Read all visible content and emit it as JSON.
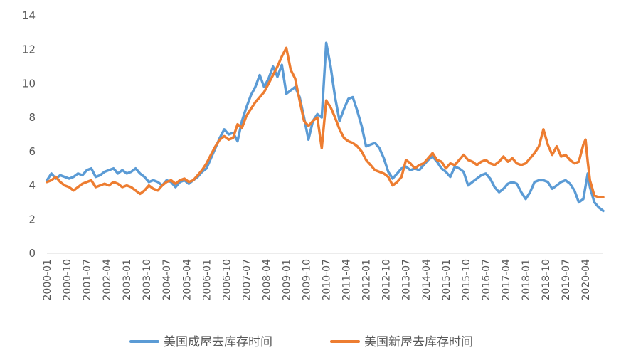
{
  "chart_data": {
    "type": "line",
    "title": "",
    "xlabel": "",
    "ylabel": "",
    "ylim": [
      0,
      14
    ],
    "yticks": [
      0,
      2,
      4,
      6,
      8,
      10,
      12,
      14
    ],
    "x_start": "2000-01",
    "x_end": "2020-12",
    "xtick_labels": [
      "2000-01",
      "2000-10",
      "2001-07",
      "2002-04",
      "2003-01",
      "2003-10",
      "2004-07",
      "2005-04",
      "2006-01",
      "2006-10",
      "2007-07",
      "2008-04",
      "2009-01",
      "2009-10",
      "2010-07",
      "2011-04",
      "2012-01",
      "2012-10",
      "2013-07",
      "2014-04",
      "2015-01",
      "2015-10",
      "2016-07",
      "2017-04",
      "2018-01",
      "2018-10",
      "2019-07",
      "2020-04"
    ],
    "grid": false,
    "legend_position": "bottom",
    "series": [
      {
        "name": "美国成屋去库存时间",
        "color": "#5B9BD5",
        "points": [
          [
            "2000-01",
            4.3
          ],
          [
            "2000-03",
            4.7
          ],
          [
            "2000-05",
            4.4
          ],
          [
            "2000-07",
            4.6
          ],
          [
            "2000-09",
            4.5
          ],
          [
            "2000-11",
            4.4
          ],
          [
            "2001-01",
            4.5
          ],
          [
            "2001-03",
            4.7
          ],
          [
            "2001-05",
            4.6
          ],
          [
            "2001-07",
            4.9
          ],
          [
            "2001-09",
            5.0
          ],
          [
            "2001-11",
            4.5
          ],
          [
            "2002-01",
            4.6
          ],
          [
            "2002-03",
            4.8
          ],
          [
            "2002-05",
            4.9
          ],
          [
            "2002-07",
            5.0
          ],
          [
            "2002-09",
            4.7
          ],
          [
            "2002-11",
            4.9
          ],
          [
            "2003-01",
            4.7
          ],
          [
            "2003-03",
            4.8
          ],
          [
            "2003-05",
            5.0
          ],
          [
            "2003-07",
            4.7
          ],
          [
            "2003-09",
            4.5
          ],
          [
            "2003-11",
            4.2
          ],
          [
            "2004-01",
            4.3
          ],
          [
            "2004-03",
            4.2
          ],
          [
            "2004-05",
            4.0
          ],
          [
            "2004-07",
            4.3
          ],
          [
            "2004-09",
            4.2
          ],
          [
            "2004-11",
            3.9
          ],
          [
            "2005-01",
            4.2
          ],
          [
            "2005-03",
            4.3
          ],
          [
            "2005-05",
            4.1
          ],
          [
            "2005-07",
            4.3
          ],
          [
            "2005-09",
            4.5
          ],
          [
            "2005-11",
            4.8
          ],
          [
            "2006-01",
            5.0
          ],
          [
            "2006-03",
            5.6
          ],
          [
            "2006-05",
            6.2
          ],
          [
            "2006-07",
            6.8
          ],
          [
            "2006-09",
            7.3
          ],
          [
            "2006-11",
            7.0
          ],
          [
            "2007-01",
            7.1
          ],
          [
            "2007-03",
            6.6
          ],
          [
            "2007-05",
            7.8
          ],
          [
            "2007-07",
            8.6
          ],
          [
            "2007-09",
            9.3
          ],
          [
            "2007-11",
            9.8
          ],
          [
            "2008-01",
            10.5
          ],
          [
            "2008-03",
            9.8
          ],
          [
            "2008-05",
            10.3
          ],
          [
            "2008-07",
            11.0
          ],
          [
            "2008-09",
            10.4
          ],
          [
            "2008-11",
            11.1
          ],
          [
            "2009-01",
            9.4
          ],
          [
            "2009-03",
            9.6
          ],
          [
            "2009-05",
            9.8
          ],
          [
            "2009-07",
            9.2
          ],
          [
            "2009-09",
            8.0
          ],
          [
            "2009-11",
            6.7
          ],
          [
            "2010-01",
            7.8
          ],
          [
            "2010-03",
            8.2
          ],
          [
            "2010-05",
            8.0
          ],
          [
            "2010-07",
            12.4
          ],
          [
            "2010-09",
            11.0
          ],
          [
            "2010-11",
            9.2
          ],
          [
            "2011-01",
            7.8
          ],
          [
            "2011-03",
            8.5
          ],
          [
            "2011-05",
            9.1
          ],
          [
            "2011-07",
            9.2
          ],
          [
            "2011-09",
            8.4
          ],
          [
            "2011-11",
            7.5
          ],
          [
            "2012-01",
            6.3
          ],
          [
            "2012-03",
            6.4
          ],
          [
            "2012-05",
            6.5
          ],
          [
            "2012-07",
            6.2
          ],
          [
            "2012-09",
            5.6
          ],
          [
            "2012-11",
            4.8
          ],
          [
            "2013-01",
            4.4
          ],
          [
            "2013-03",
            4.7
          ],
          [
            "2013-05",
            5.0
          ],
          [
            "2013-07",
            5.1
          ],
          [
            "2013-09",
            4.9
          ],
          [
            "2013-11",
            5.0
          ],
          [
            "2014-01",
            4.9
          ],
          [
            "2014-03",
            5.2
          ],
          [
            "2014-05",
            5.5
          ],
          [
            "2014-07",
            5.7
          ],
          [
            "2014-09",
            5.4
          ],
          [
            "2014-11",
            5.0
          ],
          [
            "2015-01",
            4.8
          ],
          [
            "2015-03",
            4.5
          ],
          [
            "2015-05",
            5.1
          ],
          [
            "2015-07",
            5.0
          ],
          [
            "2015-09",
            4.8
          ],
          [
            "2015-11",
            4.0
          ],
          [
            "2016-01",
            4.2
          ],
          [
            "2016-03",
            4.4
          ],
          [
            "2016-05",
            4.6
          ],
          [
            "2016-07",
            4.7
          ],
          [
            "2016-09",
            4.4
          ],
          [
            "2016-11",
            3.9
          ],
          [
            "2017-01",
            3.6
          ],
          [
            "2017-03",
            3.8
          ],
          [
            "2017-05",
            4.1
          ],
          [
            "2017-07",
            4.2
          ],
          [
            "2017-09",
            4.1
          ],
          [
            "2017-11",
            3.6
          ],
          [
            "2018-01",
            3.2
          ],
          [
            "2018-03",
            3.6
          ],
          [
            "2018-05",
            4.2
          ],
          [
            "2018-07",
            4.3
          ],
          [
            "2018-09",
            4.3
          ],
          [
            "2018-11",
            4.2
          ],
          [
            "2019-01",
            3.8
          ],
          [
            "2019-03",
            4.0
          ],
          [
            "2019-05",
            4.2
          ],
          [
            "2019-07",
            4.3
          ],
          [
            "2019-09",
            4.1
          ],
          [
            "2019-11",
            3.7
          ],
          [
            "2020-01",
            3.0
          ],
          [
            "2020-03",
            3.2
          ],
          [
            "2020-05",
            4.7
          ],
          [
            "2020-06",
            3.9
          ],
          [
            "2020-08",
            3.0
          ],
          [
            "2020-10",
            2.7
          ],
          [
            "2020-12",
            2.5
          ]
        ]
      },
      {
        "name": "美国新屋去库存时间",
        "color": "#ED7D31",
        "points": [
          [
            "2000-01",
            4.2
          ],
          [
            "2000-03",
            4.3
          ],
          [
            "2000-05",
            4.5
          ],
          [
            "2000-07",
            4.2
          ],
          [
            "2000-09",
            4.0
          ],
          [
            "2000-11",
            3.9
          ],
          [
            "2001-01",
            3.7
          ],
          [
            "2001-03",
            3.9
          ],
          [
            "2001-05",
            4.1
          ],
          [
            "2001-07",
            4.2
          ],
          [
            "2001-09",
            4.3
          ],
          [
            "2001-11",
            3.9
          ],
          [
            "2002-01",
            4.0
          ],
          [
            "2002-03",
            4.1
          ],
          [
            "2002-05",
            4.0
          ],
          [
            "2002-07",
            4.2
          ],
          [
            "2002-09",
            4.1
          ],
          [
            "2002-11",
            3.9
          ],
          [
            "2003-01",
            4.0
          ],
          [
            "2003-03",
            3.9
          ],
          [
            "2003-05",
            3.7
          ],
          [
            "2003-07",
            3.5
          ],
          [
            "2003-09",
            3.7
          ],
          [
            "2003-11",
            4.0
          ],
          [
            "2004-01",
            3.8
          ],
          [
            "2004-03",
            3.7
          ],
          [
            "2004-05",
            4.0
          ],
          [
            "2004-07",
            4.2
          ],
          [
            "2004-09",
            4.3
          ],
          [
            "2004-11",
            4.1
          ],
          [
            "2005-01",
            4.3
          ],
          [
            "2005-03",
            4.4
          ],
          [
            "2005-05",
            4.2
          ],
          [
            "2005-07",
            4.3
          ],
          [
            "2005-09",
            4.6
          ],
          [
            "2005-11",
            4.9
          ],
          [
            "2006-01",
            5.3
          ],
          [
            "2006-03",
            5.8
          ],
          [
            "2006-05",
            6.3
          ],
          [
            "2006-07",
            6.7
          ],
          [
            "2006-09",
            6.9
          ],
          [
            "2006-11",
            6.7
          ],
          [
            "2007-01",
            6.8
          ],
          [
            "2007-03",
            7.6
          ],
          [
            "2007-05",
            7.4
          ],
          [
            "2007-07",
            8.1
          ],
          [
            "2007-09",
            8.5
          ],
          [
            "2007-11",
            8.9
          ],
          [
            "2008-01",
            9.2
          ],
          [
            "2008-03",
            9.5
          ],
          [
            "2008-05",
            10.0
          ],
          [
            "2008-07",
            10.5
          ],
          [
            "2008-09",
            11.0
          ],
          [
            "2008-11",
            11.6
          ],
          [
            "2009-01",
            12.1
          ],
          [
            "2009-03",
            10.8
          ],
          [
            "2009-05",
            10.3
          ],
          [
            "2009-07",
            9.0
          ],
          [
            "2009-09",
            7.8
          ],
          [
            "2009-11",
            7.5
          ],
          [
            "2010-01",
            7.8
          ],
          [
            "2010-03",
            8.0
          ],
          [
            "2010-05",
            6.2
          ],
          [
            "2010-07",
            9.0
          ],
          [
            "2010-09",
            8.6
          ],
          [
            "2010-11",
            8.0
          ],
          [
            "2011-01",
            7.3
          ],
          [
            "2011-03",
            6.8
          ],
          [
            "2011-05",
            6.6
          ],
          [
            "2011-07",
            6.5
          ],
          [
            "2011-09",
            6.3
          ],
          [
            "2011-11",
            6.0
          ],
          [
            "2012-01",
            5.5
          ],
          [
            "2012-03",
            5.2
          ],
          [
            "2012-05",
            4.9
          ],
          [
            "2012-07",
            4.8
          ],
          [
            "2012-09",
            4.7
          ],
          [
            "2012-11",
            4.5
          ],
          [
            "2013-01",
            4.0
          ],
          [
            "2013-03",
            4.2
          ],
          [
            "2013-05",
            4.5
          ],
          [
            "2013-07",
            5.5
          ],
          [
            "2013-09",
            5.3
          ],
          [
            "2013-11",
            5.0
          ],
          [
            "2014-01",
            5.2
          ],
          [
            "2014-03",
            5.3
          ],
          [
            "2014-05",
            5.6
          ],
          [
            "2014-07",
            5.9
          ],
          [
            "2014-09",
            5.5
          ],
          [
            "2014-11",
            5.4
          ],
          [
            "2015-01",
            5.0
          ],
          [
            "2015-03",
            5.3
          ],
          [
            "2015-05",
            5.2
          ],
          [
            "2015-07",
            5.5
          ],
          [
            "2015-09",
            5.8
          ],
          [
            "2015-11",
            5.5
          ],
          [
            "2016-01",
            5.4
          ],
          [
            "2016-03",
            5.2
          ],
          [
            "2016-05",
            5.4
          ],
          [
            "2016-07",
            5.5
          ],
          [
            "2016-09",
            5.3
          ],
          [
            "2016-11",
            5.2
          ],
          [
            "2017-01",
            5.4
          ],
          [
            "2017-03",
            5.7
          ],
          [
            "2017-05",
            5.4
          ],
          [
            "2017-07",
            5.6
          ],
          [
            "2017-09",
            5.3
          ],
          [
            "2017-11",
            5.2
          ],
          [
            "2018-01",
            5.3
          ],
          [
            "2018-03",
            5.6
          ],
          [
            "2018-05",
            5.9
          ],
          [
            "2018-07",
            6.3
          ],
          [
            "2018-09",
            7.3
          ],
          [
            "2018-11",
            6.4
          ],
          [
            "2019-01",
            5.8
          ],
          [
            "2019-03",
            6.3
          ],
          [
            "2019-05",
            5.7
          ],
          [
            "2019-07",
            5.8
          ],
          [
            "2019-09",
            5.5
          ],
          [
            "2019-11",
            5.3
          ],
          [
            "2020-01",
            5.4
          ],
          [
            "2020-03",
            6.4
          ],
          [
            "2020-04",
            6.7
          ],
          [
            "2020-05",
            5.4
          ],
          [
            "2020-06",
            4.3
          ],
          [
            "2020-08",
            3.4
          ],
          [
            "2020-10",
            3.3
          ],
          [
            "2020-12",
            3.3
          ]
        ]
      }
    ]
  }
}
